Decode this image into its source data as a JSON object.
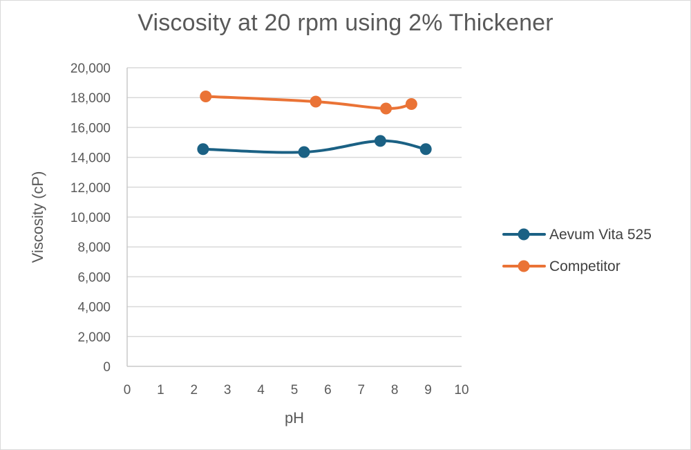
{
  "chart_data": {
    "type": "line",
    "title": "Viscosity at 20 rpm using 2% Thickener",
    "xlabel": "pH",
    "ylabel": "Viscosity (cP)",
    "xlim": [
      0,
      10
    ],
    "ylim": [
      0,
      20000
    ],
    "x_ticks": [
      "0",
      "1",
      "2",
      "3",
      "4",
      "5",
      "6",
      "7",
      "8",
      "9",
      "10"
    ],
    "y_ticks": [
      "0",
      "2,000",
      "4,000",
      "6,000",
      "8,000",
      "10,000",
      "12,000",
      "14,000",
      "16,000",
      "18,000",
      "20,000"
    ],
    "grid": "horizontal",
    "legend_position": "right",
    "smoothed": true,
    "series": [
      {
        "name": "Aevum Vita 525",
        "color": "#1b6184",
        "x": [
          2.27,
          5.29,
          7.57,
          8.93
        ],
        "values": [
          14550,
          14350,
          15100,
          14550
        ]
      },
      {
        "name": "Competitor",
        "color": "#ea7336",
        "x": [
          2.35,
          5.64,
          7.74,
          8.5
        ],
        "values": [
          18080,
          17730,
          17270,
          17570
        ]
      }
    ]
  }
}
